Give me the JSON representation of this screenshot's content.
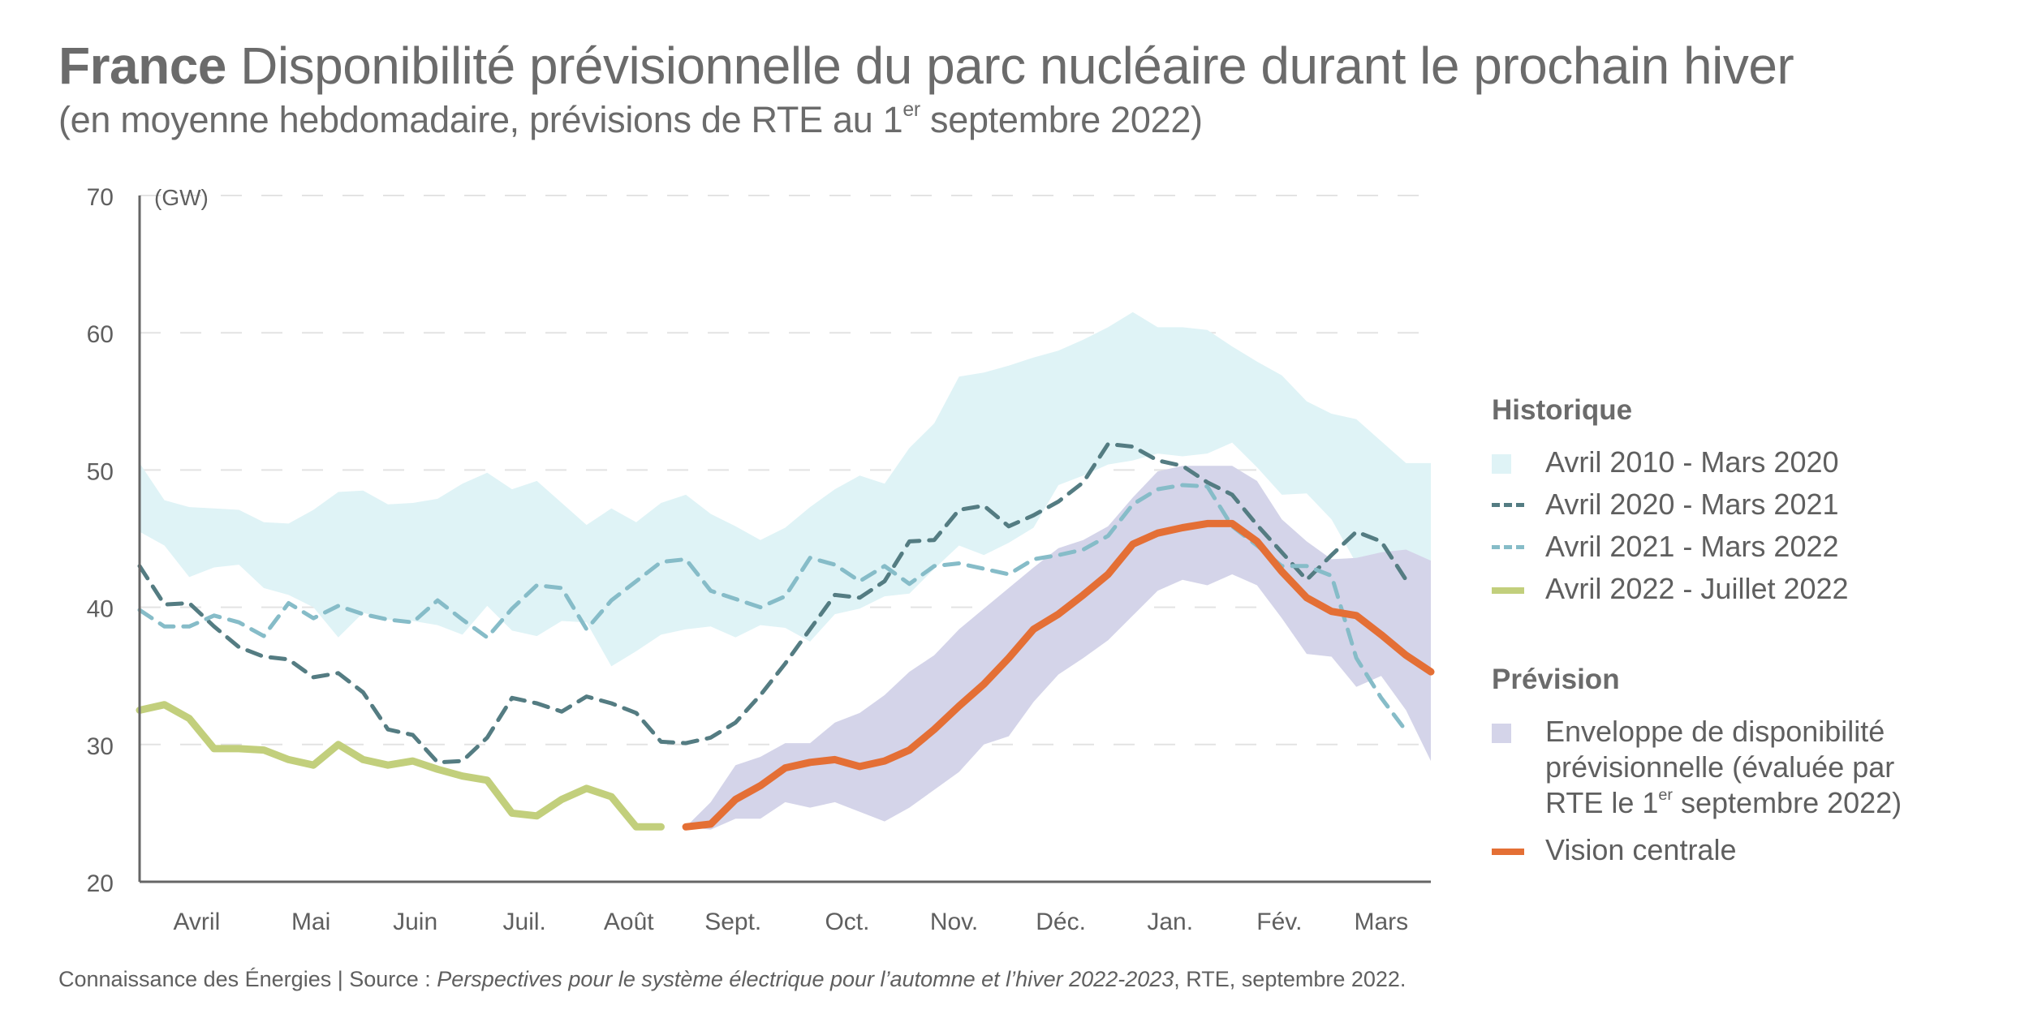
{
  "header": {
    "title_bold": "France",
    "title_rest": " Disponibilité prévisionnelle du parc nucléaire durant le prochain hiver",
    "subtitle_pre": "(en moyenne hebdomadaire, prévisions de RTE au 1",
    "subtitle_sup": "er",
    "subtitle_post": " septembre 2022)"
  },
  "legend": {
    "group1": "Historique",
    "group2": "Prévision",
    "items": [
      {
        "label": "Avril 2010 - Mars 2020"
      },
      {
        "label": "Avril 2020 - Mars 2021"
      },
      {
        "label": "Avril 2021 - Mars 2022"
      },
      {
        "label": "Avril 2022 - Juillet 2022"
      }
    ],
    "forecast_envelope_line1": "Enveloppe de disponibilité",
    "forecast_envelope_line2": "prévisionnelle (évaluée par",
    "forecast_envelope_line3_pre": "RTE le 1",
    "forecast_envelope_line3_sup": "er",
    "forecast_envelope_line3_post": " septembre 2022)",
    "central": "Vision centrale"
  },
  "footer": {
    "pre": "Connaissance des Énergies | Source : ",
    "italic": "Perspectives pour le système électrique pour l’automne et l’hiver 2022-2023",
    "post": ", RTE, septembre 2022."
  },
  "colors": {
    "hist_band": "#dff3f6",
    "y2020": "#547c82",
    "y2021": "#86bcc8",
    "y2022": "#c2cf7c",
    "forecast_band": "#d4d4e9",
    "central": "#e46f35",
    "axis": "#666666",
    "grid": "#e3e3e3"
  },
  "chart_data": {
    "type": "line",
    "title": "France Disponibilité prévisionnelle du parc nucléaire durant le prochain hiver",
    "ylabel": "(GW)",
    "ylim": [
      20,
      70
    ],
    "yticks": [
      20,
      30,
      40,
      50,
      60,
      70
    ],
    "grid": true,
    "legend_position": "right",
    "x_unit": "week index (0 = start of April, 52 = end of March)",
    "xlim": [
      0,
      52
    ],
    "month_labels": [
      {
        "label": "Avril",
        "x": 2.3
      },
      {
        "label": "Mai",
        "x": 6.9
      },
      {
        "label": "Juin",
        "x": 11.1
      },
      {
        "label": "Juil.",
        "x": 15.5
      },
      {
        "label": "Août",
        "x": 19.7
      },
      {
        "label": "Sept.",
        "x": 23.9
      },
      {
        "label": "Oct.",
        "x": 28.5
      },
      {
        "label": "Nov.",
        "x": 32.8
      },
      {
        "label": "Déc.",
        "x": 37.1
      },
      {
        "label": "Jan.",
        "x": 41.5
      },
      {
        "label": "Fév.",
        "x": 45.9
      },
      {
        "label": "Mars",
        "x": 50.0
      }
    ],
    "hist_band": {
      "name": "Avril 2010 - Mars 2020",
      "upper": [
        50.5,
        47.8,
        47.3,
        47.2,
        47.1,
        46.2,
        46.1,
        47.1,
        48.4,
        48.5,
        47.5,
        47.6,
        47.9,
        49.0,
        49.8,
        48.6,
        49.2,
        47.6,
        46.0,
        47.2,
        46.2,
        47.6,
        48.2,
        46.8,
        45.9,
        44.9,
        45.8,
        47.3,
        48.6,
        49.6,
        49.0,
        51.6,
        53.4,
        56.8,
        57.1,
        57.6,
        58.2,
        58.7,
        59.5,
        60.4,
        61.5,
        60.4,
        60.4,
        60.2,
        59.0,
        57.9,
        56.9,
        55.0,
        54.1,
        53.7,
        52.1,
        50.5,
        50.5
      ],
      "lower": [
        45.5,
        44.5,
        42.2,
        42.9,
        43.1,
        41.4,
        40.9,
        40.0,
        37.8,
        39.6,
        39.1,
        39.0,
        38.7,
        38.0,
        40.1,
        38.3,
        37.9,
        39.0,
        38.9,
        35.7,
        36.8,
        38.0,
        38.4,
        38.6,
        37.8,
        38.7,
        38.5,
        37.5,
        39.5,
        39.9,
        40.8,
        41.0,
        42.8,
        44.5,
        43.8,
        44.7,
        45.8,
        48.9,
        49.6,
        50.4,
        50.7,
        51.2,
        51.0,
        51.2,
        52.0,
        50.2,
        48.2,
        48.3,
        46.4,
        43.2,
        43.6,
        43.4,
        43.4
      ]
    },
    "series": [
      {
        "name": "Avril 2020 - Mars 2021",
        "style": "dashed",
        "x_start": 0,
        "values": [
          43.0,
          40.2,
          40.3,
          38.6,
          37.1,
          36.4,
          36.2,
          34.9,
          35.2,
          33.8,
          31.1,
          30.7,
          28.7,
          28.8,
          30.5,
          33.4,
          33.0,
          32.4,
          33.5,
          33.0,
          32.3,
          30.2,
          30.1,
          30.5,
          31.6,
          33.6,
          35.9,
          38.4,
          40.9,
          40.7,
          41.9,
          44.8,
          44.9,
          47.1,
          47.4,
          45.9,
          46.7,
          47.7,
          49.1,
          51.9,
          51.7,
          50.7,
          50.3,
          49.1,
          48.2,
          46.0,
          44.0,
          42.0,
          43.8,
          45.5,
          44.8,
          42.0
        ]
      },
      {
        "name": "Avril 2021 - Mars 2022",
        "style": "dashed",
        "x_start": 0,
        "values": [
          39.8,
          38.6,
          38.6,
          39.4,
          38.9,
          37.9,
          40.3,
          39.2,
          40.1,
          39.5,
          39.1,
          38.9,
          40.5,
          39.1,
          37.8,
          39.9,
          41.6,
          41.4,
          38.4,
          40.5,
          41.9,
          43.3,
          43.5,
          41.2,
          40.6,
          40.0,
          40.8,
          43.6,
          43.1,
          41.9,
          43.0,
          41.7,
          43.0,
          43.2,
          42.8,
          42.4,
          43.5,
          43.8,
          44.2,
          45.2,
          47.5,
          48.6,
          48.9,
          48.8,
          45.9,
          44.5,
          43.0,
          43.0,
          42.3,
          36.3,
          33.4,
          31.0
        ]
      },
      {
        "name": "Avril 2022 - Juillet 2022",
        "style": "solid",
        "x_start": 0,
        "values": [
          32.5,
          32.9,
          31.9,
          29.7,
          29.7,
          29.6,
          28.9,
          28.5,
          30.0,
          28.9,
          28.5,
          28.8,
          28.2,
          27.7,
          27.4,
          25.0,
          24.8,
          26.0,
          26.8,
          26.2,
          24.0,
          24.0
        ]
      },
      {
        "name": "Vision centrale",
        "style": "solid",
        "x_start": 22,
        "values": [
          24.0,
          24.2,
          26.0,
          27.0,
          28.3,
          28.7,
          28.9,
          28.4,
          28.8,
          29.6,
          31.1,
          32.8,
          34.4,
          36.3,
          38.4,
          39.5,
          40.9,
          42.4,
          44.6,
          45.4,
          45.8,
          46.1,
          46.1,
          44.8,
          42.6,
          40.7,
          39.7,
          39.4,
          38.0,
          36.5,
          35.3
        ]
      }
    ],
    "forecast_band": {
      "name": "Enveloppe de disponibilité prévisionnelle (évaluée par RTE le 1er septembre 2022)",
      "x_start": 22,
      "upper": [
        24.0,
        25.8,
        28.5,
        29.1,
        30.1,
        30.1,
        31.6,
        32.3,
        33.6,
        35.3,
        36.5,
        38.4,
        39.9,
        41.4,
        42.9,
        44.3,
        44.9,
        45.9,
        48.0,
        49.9,
        50.3,
        50.3,
        50.3,
        49.2,
        46.4,
        44.8,
        43.5,
        43.6,
        44.0,
        44.2,
        43.4
      ],
      "lower": [
        24.0,
        23.8,
        24.6,
        24.6,
        25.8,
        25.4,
        25.8,
        25.1,
        24.4,
        25.4,
        26.7,
        28.0,
        30.0,
        30.6,
        33.1,
        35.1,
        36.3,
        37.6,
        39.4,
        41.2,
        42.0,
        41.6,
        42.4,
        41.6,
        39.2,
        36.6,
        36.4,
        34.2,
        35.0,
        32.5,
        28.8
      ]
    }
  }
}
